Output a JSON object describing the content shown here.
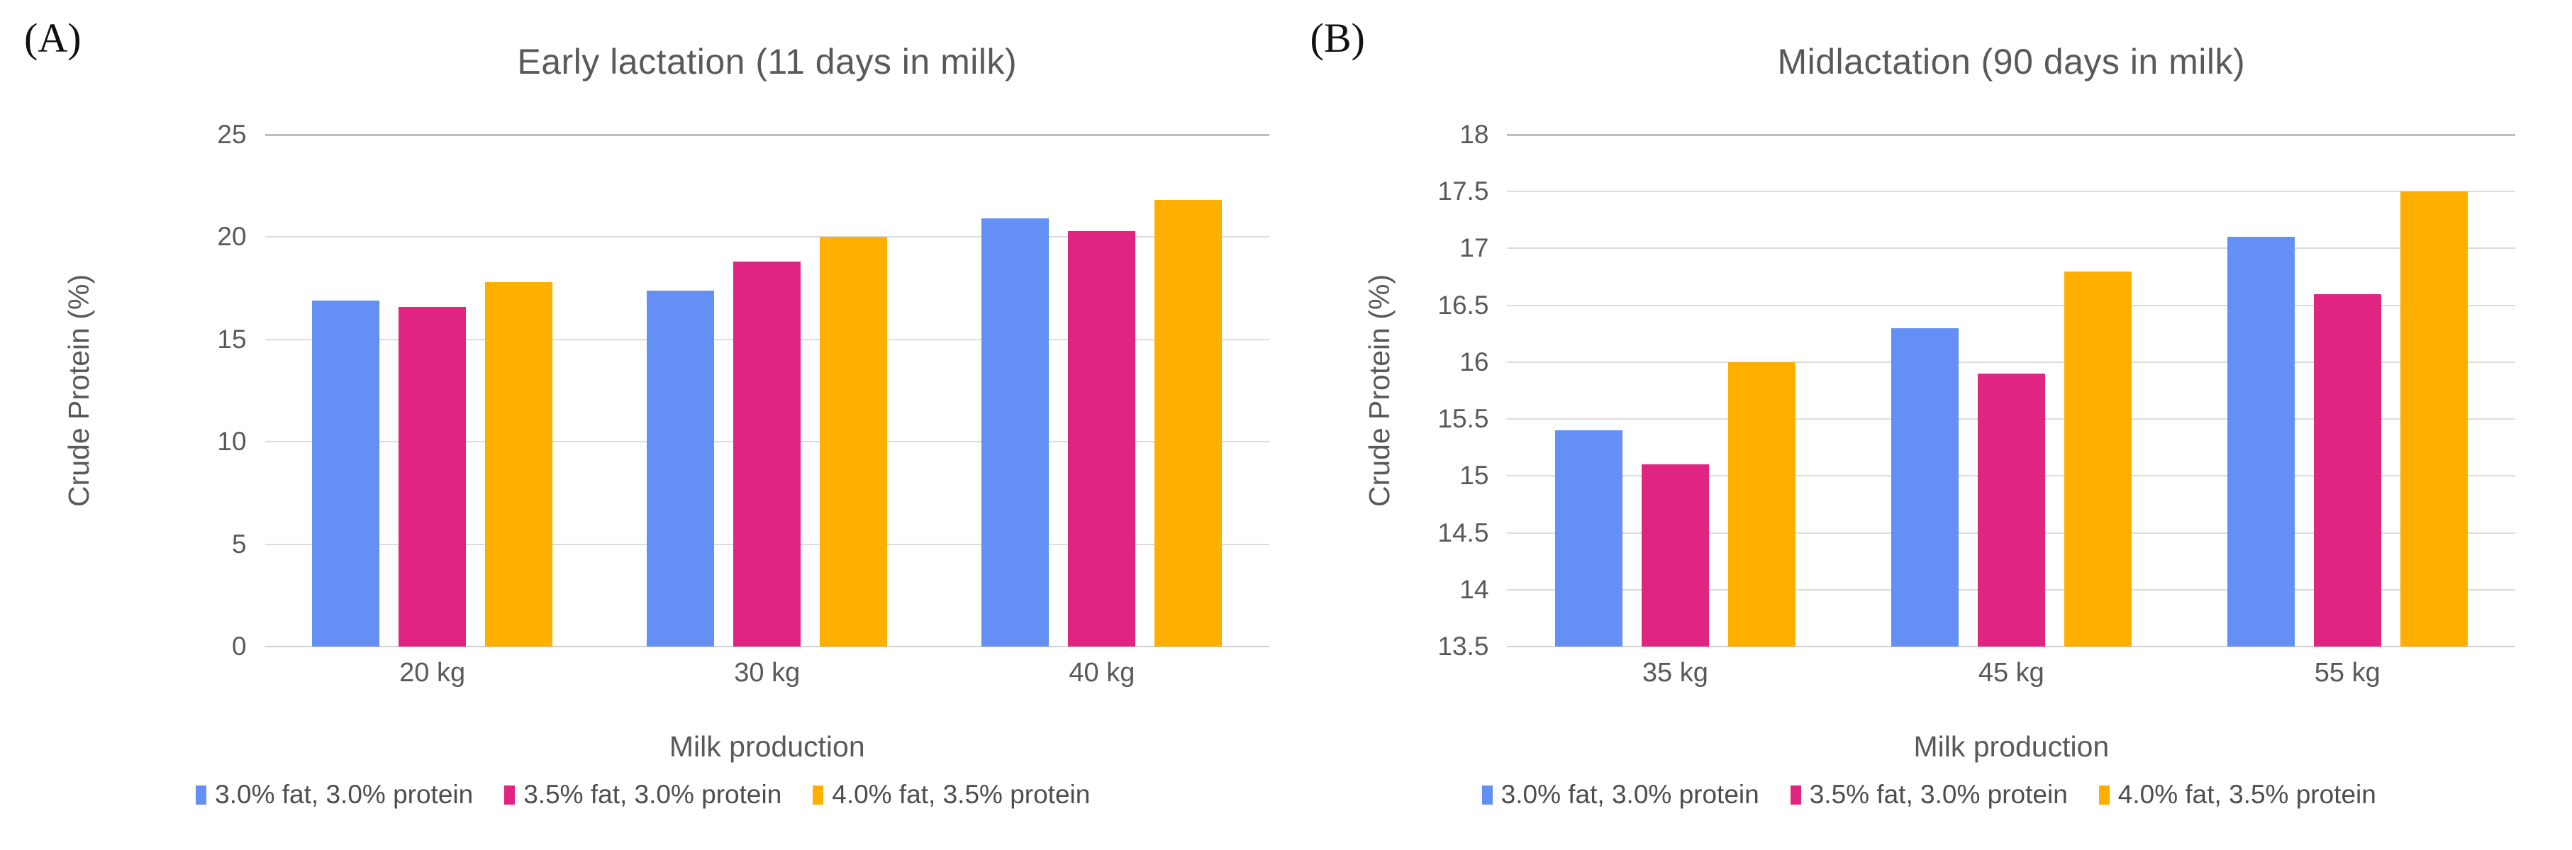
{
  "figure": {
    "panels": [
      {
        "panel_label": "(A)"
      },
      {
        "panel_label": "(B)"
      }
    ]
  },
  "chart_data": [
    {
      "type": "bar",
      "title": "Early lactation (11 days in milk)",
      "categories": [
        "20 kg",
        "30 kg",
        "40 kg"
      ],
      "series": [
        {
          "name": "3.0% fat, 3.0% protein",
          "color": "#6490F5",
          "values": [
            16.9,
            17.4,
            20.9
          ]
        },
        {
          "name": "3.5% fat, 3.0% protein",
          "color": "#E02482",
          "values": [
            16.6,
            18.8,
            20.3
          ]
        },
        {
          "name": "4.0% fat, 3.5% protein",
          "color": "#FFAF00",
          "values": [
            17.8,
            20.0,
            21.8
          ]
        }
      ],
      "xlabel": "Milk production",
      "ylabel": "Crude Protein (%)",
      "ylim": [
        0,
        25
      ],
      "ytick_step": 5,
      "grid": true,
      "legend_position": "bottom"
    },
    {
      "type": "bar",
      "title": "Midlactation (90 days in milk)",
      "categories": [
        "35 kg",
        "45 kg",
        "55 kg"
      ],
      "series": [
        {
          "name": "3.0% fat, 3.0% protein",
          "color": "#6490F5",
          "values": [
            15.4,
            16.3,
            17.1
          ]
        },
        {
          "name": "3.5% fat, 3.0% protein",
          "color": "#E02482",
          "values": [
            15.1,
            15.9,
            16.6
          ]
        },
        {
          "name": "4.0% fat, 3.5% protein",
          "color": "#FFAF00",
          "values": [
            16.0,
            16.8,
            17.5
          ]
        }
      ],
      "xlabel": "Milk production",
      "ylabel": "Crude Protein (%)",
      "ylim": [
        13.5,
        18
      ],
      "ytick_step": 0.5,
      "grid": true,
      "legend_position": "bottom"
    }
  ],
  "colors": {
    "blue_series": "#6490F5",
    "pink_series": "#E02482",
    "orange_series": "#FFAF00",
    "gridline": "#DCDCDC",
    "text": "#595959"
  }
}
